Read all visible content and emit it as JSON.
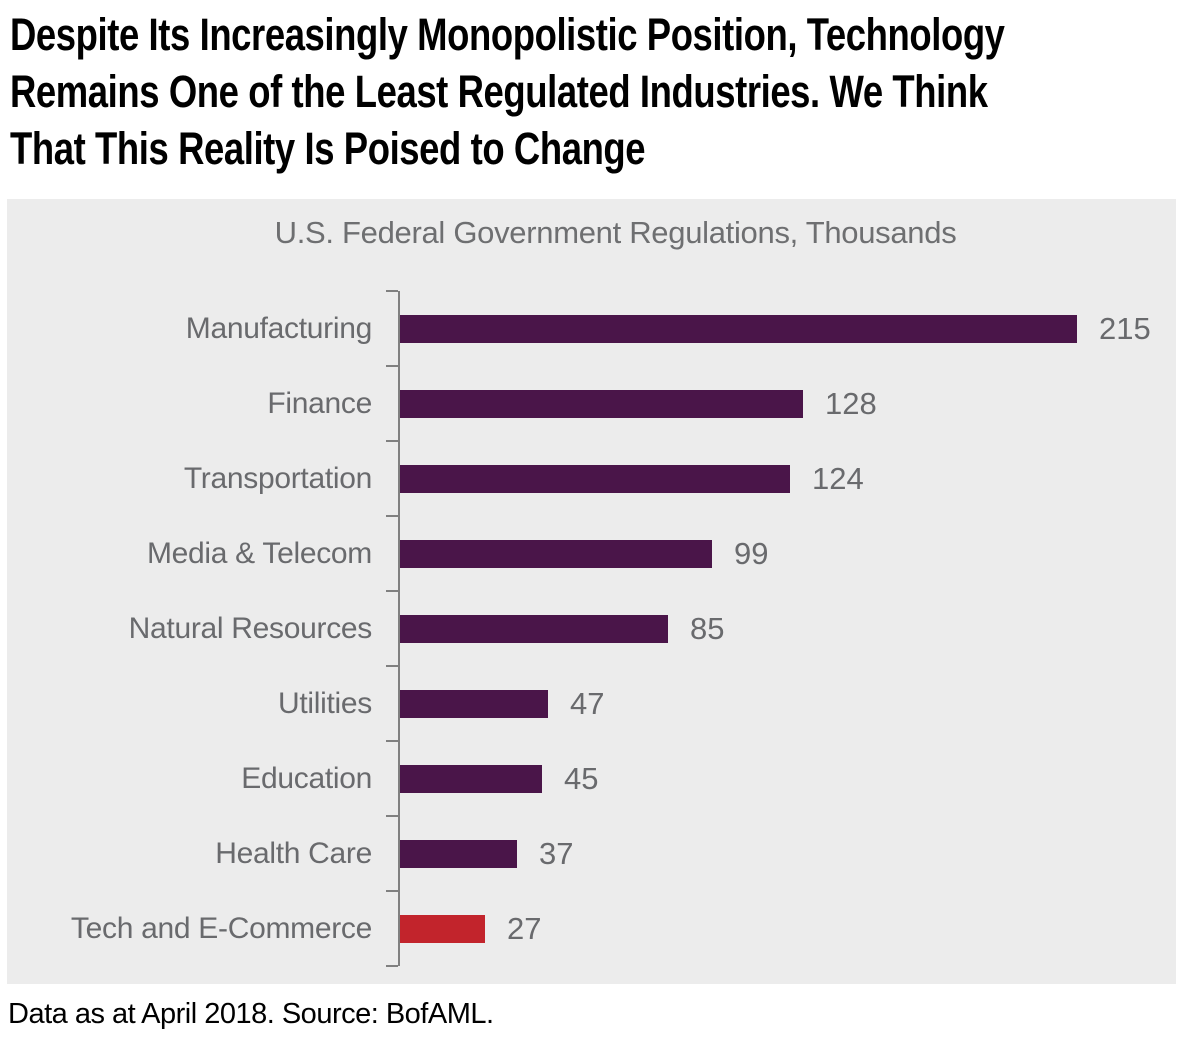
{
  "title": {
    "lines": [
      "Despite Its Increasingly Monopolistic Position, Technology",
      "Remains One of the Least Regulated Industries. We Think",
      "That This Reality Is Poised to Change"
    ]
  },
  "footer": "Data as at April 2018. Source: BofAML.",
  "chart_data": {
    "type": "bar",
    "orientation": "horizontal",
    "title": "U.S. Federal Government Regulations, Thousands",
    "categories": [
      "Manufacturing",
      "Finance",
      "Transportation",
      "Media & Telecom",
      "Natural Resources",
      "Utilities",
      "Education",
      "Health Care",
      "Tech and E-Commerce"
    ],
    "values": [
      215,
      128,
      124,
      99,
      85,
      47,
      45,
      37,
      27
    ],
    "value_labels_shown": true,
    "highlight_index": 8,
    "xlim": [
      0,
      230
    ],
    "grid": false,
    "legend_position": "none",
    "colors": {
      "bar": "#4a1549",
      "highlight": "#c2242c",
      "panel_background": "#ececec",
      "axis": "#808080",
      "category_label": "#696a6d",
      "value_label": "#696a6d",
      "chart_title": "#6e6f71"
    }
  }
}
